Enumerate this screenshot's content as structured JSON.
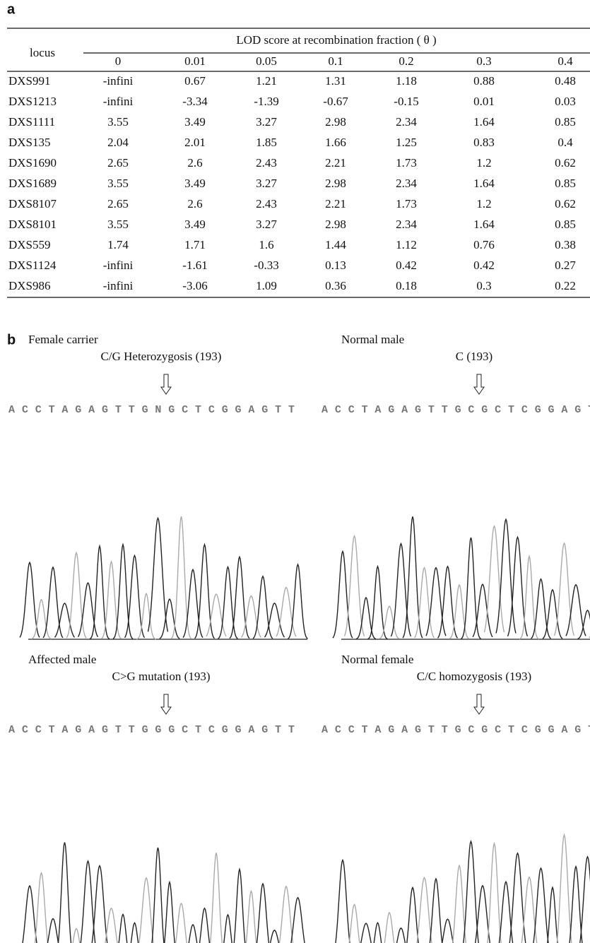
{
  "panel_a": {
    "label": "a",
    "table": {
      "row_header": "locus",
      "group_header": "LOD score at recombination fraction ( θ )",
      "columns": [
        "0",
        "0.01",
        "0.05",
        "0.1",
        "0.2",
        "0.3",
        "0.4"
      ],
      "rows": [
        [
          "DXS991",
          "-infini",
          "0.67",
          "1.21",
          "1.31",
          "1.18",
          "0.88",
          "0.48"
        ],
        [
          "DXS1213",
          "-infini",
          "-3.34",
          "-1.39",
          "-0.67",
          "-0.15",
          "0.01",
          "0.03"
        ],
        [
          "DXS1111",
          "3.55",
          "3.49",
          "3.27",
          "2.98",
          "2.34",
          "1.64",
          "0.85"
        ],
        [
          "DXS135",
          "2.04",
          "2.01",
          "1.85",
          "1.66",
          "1.25",
          "0.83",
          "0.4"
        ],
        [
          "DXS1690",
          "2.65",
          "2.6",
          "2.43",
          "2.21",
          "1.73",
          "1.2",
          "0.62"
        ],
        [
          "DXS1689",
          "3.55",
          "3.49",
          "3.27",
          "2.98",
          "2.34",
          "1.64",
          "0.85"
        ],
        [
          "DXS8107",
          "2.65",
          "2.6",
          "2.43",
          "2.21",
          "1.73",
          "1.2",
          "0.62"
        ],
        [
          "DXS8101",
          "3.55",
          "3.49",
          "3.27",
          "2.98",
          "2.34",
          "1.64",
          "0.85"
        ],
        [
          "DXS559",
          "1.74",
          "1.71",
          "1.6",
          "1.44",
          "1.12",
          "0.76",
          "0.38"
        ],
        [
          "DXS1124",
          "-infini",
          "-1.61",
          "-0.33",
          "0.13",
          "0.42",
          "0.42",
          "0.27"
        ],
        [
          "DXS986",
          "-infini",
          "-3.06",
          "1.09",
          "0.36",
          "0.18",
          "0.3",
          "0.22"
        ]
      ]
    }
  },
  "panel_b": {
    "label": "b",
    "samples": [
      {
        "title": "Female carrier",
        "subtitle": "C/G Heterozygosis (193)",
        "sequence": "A C C T A G A G T T G N G C T C G G A G T T"
      },
      {
        "title": "Normal male",
        "subtitle": "C  (193)",
        "sequence": "A C C T A G A G T T G C G C T C G G A G T T"
      },
      {
        "title": "Affected male",
        "subtitle": "C>G mutation (193)",
        "sequence": "A C C T A G A G T T G G G C T C G G A G T T"
      },
      {
        "title": "Normal female",
        "subtitle": "C/C homozygosis (193)",
        "sequence": "A C C T A G A G T T G C G C T C G G A G T T"
      }
    ]
  }
}
